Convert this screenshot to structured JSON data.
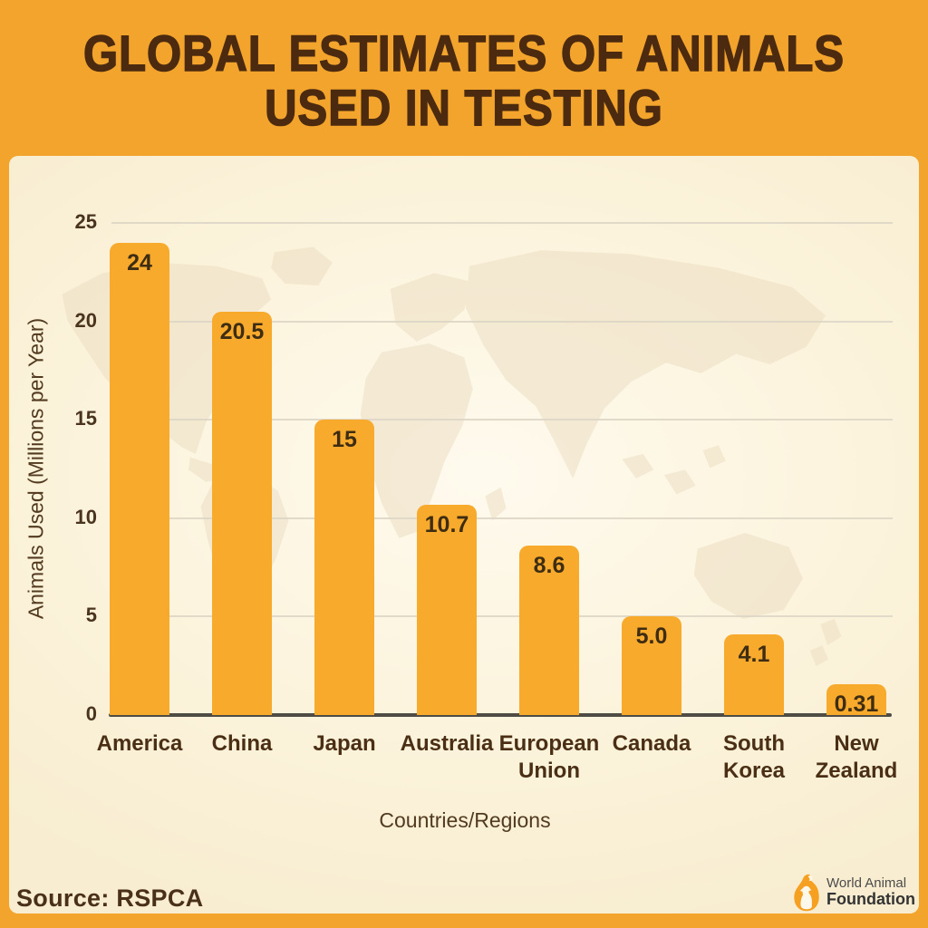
{
  "header": {
    "title_line1": "GLOBAL ESTIMATES OF ANIMALS",
    "title_line2": "USED IN TESTING"
  },
  "chart_data": {
    "type": "bar",
    "title": "Global Estimates of Animals Used in Testing",
    "categories": [
      "America",
      "China",
      "Japan",
      "Australia",
      "European Union",
      "Canada",
      "South Korea",
      "New Zealand"
    ],
    "values": [
      24,
      20.5,
      15,
      10.7,
      8.6,
      5.0,
      4.1,
      0.31
    ],
    "value_labels": [
      "24",
      "20.5",
      "15",
      "10.7",
      "8.6",
      "5.0",
      "4.1",
      "0.31"
    ],
    "xlabel": "Countries/Regions",
    "ylabel": "Animals Used (Millions per Year)",
    "ylim": [
      0,
      25
    ],
    "yticks": [
      0,
      5,
      10,
      15,
      20,
      25
    ],
    "grid": true,
    "legend": "none",
    "bar_color": "#F8AA2D"
  },
  "footer": {
    "source": "Source: RSPCA",
    "logo_line1": "World Animal",
    "logo_line2": "Foundation"
  },
  "colors": {
    "frame_orange": "#F2A42C",
    "bar_orange": "#F8AA2D",
    "title_brown": "#4C2A10",
    "text_brown": "#4A3018",
    "value_text": "#3E2D13",
    "panel_cream_center": "#FEFAEE",
    "panel_cream_edge": "#F8EDD0",
    "gridline": "#DCD5C5",
    "baseline": "#4F4C45",
    "map_watermark": "#EDDFC4",
    "logo_orange": "#F5A020"
  }
}
